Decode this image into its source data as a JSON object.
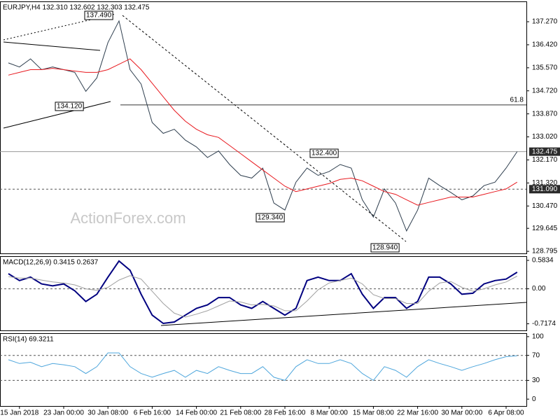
{
  "chart_data": [
    {
      "type": "line",
      "title": "EURJPY,H4  132.310 132.602 132.303 132.475",
      "watermark": "ActionForex.com",
      "ylim": [
        128.72,
        138.02
      ],
      "yticks": [
        {
          "value": 137.27,
          "label": "137.270"
        },
        {
          "value": 136.42,
          "label": "136.420"
        },
        {
          "value": 135.57,
          "label": "135.570"
        },
        {
          "value": 134.72,
          "label": "134.720"
        },
        {
          "value": 133.87,
          "label": "133.870"
        },
        {
          "value": 133.02,
          "label": "133.020"
        },
        {
          "value": 132.17,
          "label": "132.170"
        },
        {
          "value": 131.32,
          "label": "131.320"
        },
        {
          "value": 130.47,
          "label": "130.470"
        },
        129.645,
        128.795
      ],
      "levels": [
        {
          "value": 132.475,
          "label": "132.475"
        },
        {
          "value": 131.09,
          "label": "131.090"
        }
      ],
      "fib_level": {
        "value": 134.2,
        "label": "61.8"
      },
      "annotations": [
        "137.490",
        "134.120",
        "132.400",
        "129.340",
        "128.940"
      ],
      "series": [
        {
          "name": "EURJPY",
          "color": "#2f3f4f",
          "values": [
            135.75,
            135.6,
            135.9,
            135.5,
            135.6,
            135.5,
            135.4,
            134.7,
            135.2,
            136.5,
            137.3,
            135.5,
            134.97,
            133.55,
            133.15,
            133.3,
            132.9,
            132.65,
            132.26,
            132.5,
            132.0,
            131.6,
            131.5,
            131.87,
            130.58,
            130.32,
            131.35,
            131.87,
            131.6,
            131.74,
            132.0,
            131.87,
            130.7,
            130.06,
            131.1,
            130.58,
            129.55,
            130.32,
            131.5,
            131.22,
            130.97,
            130.7,
            130.84,
            131.22,
            131.35,
            131.87,
            132.475
          ]
        },
        {
          "name": "MA",
          "color": "#e8191f",
          "values": [
            135.3,
            135.4,
            135.5,
            135.5,
            135.55,
            135.5,
            135.45,
            135.4,
            135.4,
            135.5,
            135.7,
            135.9,
            135.5,
            135.0,
            134.5,
            134.0,
            133.6,
            133.3,
            133.1,
            133.0,
            132.7,
            132.4,
            132.1,
            131.8,
            131.5,
            131.2,
            131.0,
            131.1,
            131.2,
            131.3,
            131.45,
            131.5,
            131.4,
            131.2,
            131.0,
            130.9,
            130.7,
            130.5,
            130.6,
            130.7,
            130.8,
            130.8,
            130.8,
            130.9,
            131.0,
            131.1,
            131.35
          ]
        }
      ]
    },
    {
      "type": "line",
      "title": "MACD(12,26,9) 0.3415 0.2637",
      "ylim": [
        -0.853,
        0.669
      ],
      "yticks": [
        0.5834,
        {
          "value": 0,
          "label": "0.00"
        },
        -0.7174
      ],
      "levels": [
        0
      ],
      "series": [
        {
          "name": "MACD",
          "color": "#000080",
          "values": [
            0.31,
            0.17,
            0.24,
            0.1,
            0.06,
            0.1,
            -0.04,
            -0.26,
            -0.11,
            0.24,
            0.57,
            0.38,
            -0.11,
            -0.54,
            -0.71,
            -0.68,
            -0.54,
            -0.4,
            -0.33,
            -0.18,
            -0.18,
            -0.33,
            -0.4,
            -0.26,
            -0.4,
            -0.54,
            -0.4,
            0.17,
            0.24,
            0.17,
            0.17,
            0.31,
            -0.11,
            -0.4,
            -0.18,
            -0.18,
            -0.4,
            -0.26,
            0.24,
            0.24,
            0.1,
            -0.11,
            -0.09,
            0.1,
            0.17,
            0.2,
            0.34
          ]
        },
        {
          "name": "Signal",
          "color": "#a0a0a0",
          "values": [
            0.25,
            0.22,
            0.22,
            0.18,
            0.14,
            0.12,
            0.08,
            0,
            -0.03,
            0.03,
            0.18,
            0.27,
            0.2,
            -0.05,
            -0.3,
            -0.5,
            -0.58,
            -0.52,
            -0.45,
            -0.35,
            -0.25,
            -0.27,
            -0.33,
            -0.32,
            -0.35,
            -0.45,
            -0.45,
            -0.25,
            -0.02,
            0.12,
            0.17,
            0.22,
            0.1,
            -0.12,
            -0.2,
            -0.2,
            -0.3,
            -0.3,
            -0.05,
            0.12,
            0.15,
            0.03,
            -0.05,
            0,
            0.08,
            0.14,
            0.26
          ]
        }
      ]
    },
    {
      "type": "line",
      "title": "RSI(14) 69.3211",
      "ylim": [
        -11,
        105.5
      ],
      "yticks": [
        100,
        70,
        30,
        0
      ],
      "levels": [
        70,
        30
      ],
      "categories": [
        null,
        "15 Jan 2018",
        null,
        null,
        null,
        "23 Jan 00:00",
        null,
        null,
        null,
        "30 Jan 08:00",
        null,
        null,
        null,
        "6 Feb 16:00",
        null,
        null,
        null,
        "14 Feb 00:00",
        null,
        null,
        null,
        "21 Feb 08:00",
        null,
        null,
        null,
        "28 Feb 16:00",
        null,
        null,
        null,
        "8 Mar 00:00",
        null,
        null,
        null,
        "15 Mar 08:00",
        null,
        null,
        null,
        "22 Mar 16:00",
        null,
        null,
        null,
        "30 Mar 00:00",
        null,
        null,
        null,
        "6 Apr 08:00",
        null
      ],
      "series": [
        {
          "name": "RSI",
          "color": "#4ea6dc",
          "values": [
            63,
            57,
            59,
            52,
            57,
            55,
            52,
            41,
            52,
            74,
            74,
            52,
            41,
            35,
            41,
            46,
            35,
            46,
            41,
            52,
            46,
            41,
            41,
            52,
            35,
            30,
            52,
            63,
            57,
            57,
            63,
            57,
            41,
            30,
            52,
            46,
            35,
            52,
            63,
            57,
            52,
            46,
            52,
            57,
            63,
            68,
            69.3211
          ]
        }
      ]
    }
  ]
}
